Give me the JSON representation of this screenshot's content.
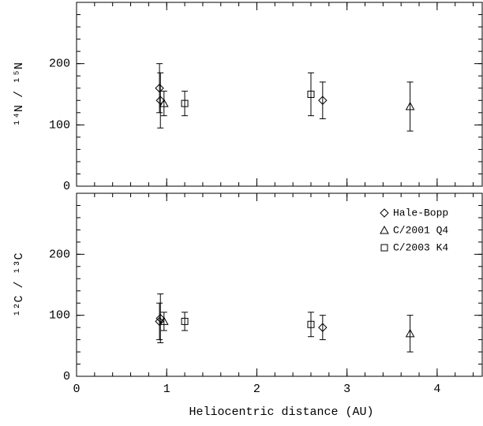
{
  "chart_data": [
    {
      "type": "errorbar",
      "ylabel": "¹⁴N / ¹⁵N",
      "xlim": [
        0,
        4.5
      ],
      "xticks": [
        0,
        1,
        2,
        3,
        4
      ],
      "show_xticklabels": false,
      "ylim": [
        0,
        300
      ],
      "yticks": [
        0,
        100,
        200
      ],
      "color": "#000000",
      "series": [
        {
          "marker": "diamond",
          "x": [
            0.92,
            0.93,
            2.73
          ],
          "values": [
            160,
            140,
            140
          ],
          "errors": [
            40,
            45,
            30
          ]
        },
        {
          "marker": "triangle",
          "x": [
            0.97,
            3.7
          ],
          "values": [
            135,
            130
          ],
          "errors": [
            20,
            40
          ]
        },
        {
          "marker": "square",
          "x": [
            1.2,
            2.6
          ],
          "values": [
            135,
            150
          ],
          "errors": [
            20,
            35
          ]
        }
      ]
    },
    {
      "type": "errorbar",
      "ylabel": "¹²C / ¹³C",
      "xlabel": "Heliocentric distance (AU)",
      "xlim": [
        0,
        4.5
      ],
      "xticks": [
        0,
        1,
        2,
        3,
        4
      ],
      "show_xticklabels": true,
      "ylim": [
        0,
        300
      ],
      "yticks": [
        0,
        100,
        200
      ],
      "color": "#000000",
      "legend": "upper right",
      "series": [
        {
          "name": "Hale-Bopp",
          "marker": "diamond",
          "x": [
            0.92,
            0.93,
            2.73
          ],
          "values": [
            90,
            95,
            80
          ],
          "errors": [
            30,
            40,
            20
          ]
        },
        {
          "name": "C/2001 Q4",
          "marker": "triangle",
          "x": [
            0.97,
            3.7
          ],
          "values": [
            90,
            70
          ],
          "errors": [
            15,
            30
          ]
        },
        {
          "name": "C/2003 K4",
          "marker": "square",
          "x": [
            1.2,
            2.6
          ],
          "values": [
            90,
            85
          ],
          "errors": [
            15,
            20
          ]
        }
      ]
    }
  ]
}
